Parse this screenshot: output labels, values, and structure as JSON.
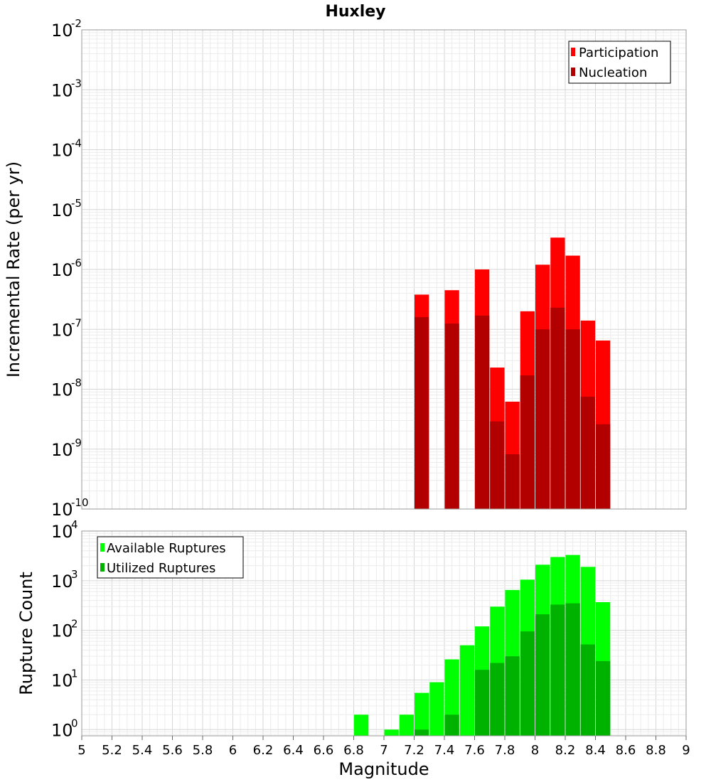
{
  "chart_data": {
    "title": "Huxley",
    "xlabel": "Magnitude",
    "x_ticks": [
      "5",
      "5.2",
      "5.4",
      "5.6",
      "5.8",
      "6",
      "6.2",
      "6.4",
      "6.6",
      "6.8",
      "7",
      "7.2",
      "7.4",
      "7.6",
      "7.8",
      "8",
      "8.2",
      "8.4",
      "8.6",
      "8.8",
      "9"
    ],
    "xlim": [
      5,
      9
    ],
    "bar_width": 0.1,
    "panels": [
      {
        "type": "bar",
        "scale": "log",
        "ylabel": "Incremental Rate (per yr)",
        "ylim": [
          1e-10,
          0.01
        ],
        "y_ticks": [
          {
            "base": "10",
            "exp": "-10"
          },
          {
            "base": "10",
            "exp": "-9"
          },
          {
            "base": "10",
            "exp": "-8"
          },
          {
            "base": "10",
            "exp": "-7"
          },
          {
            "base": "10",
            "exp": "-6"
          },
          {
            "base": "10",
            "exp": "-5"
          },
          {
            "base": "10",
            "exp": "-4"
          },
          {
            "base": "10",
            "exp": "-3"
          },
          {
            "base": "10",
            "exp": "-2"
          }
        ],
        "legend_position": "top-right",
        "series": [
          {
            "name": "Participation",
            "color": "#ff0000",
            "x": [
              7.25,
              7.45,
              7.65,
              7.75,
              7.85,
              7.95,
              8.05,
              8.15,
              8.25,
              8.35,
              8.45
            ],
            "values": [
              3.8e-07,
              4.5e-07,
              1e-06,
              2.3e-08,
              6.2e-09,
              2e-07,
              1.2e-06,
              3.4e-06,
              1.7e-06,
              1.4e-07,
              6.5e-08
            ]
          },
          {
            "name": "Nucleation",
            "color": "#b20000",
            "x": [
              7.25,
              7.45,
              7.65,
              7.75,
              7.85,
              7.95,
              8.05,
              8.15,
              8.25,
              8.35,
              8.45
            ],
            "values": [
              1.6e-07,
              1.25e-07,
              1.7e-07,
              2.9e-09,
              8.2e-10,
              1.7e-08,
              1e-07,
              2.3e-07,
              1e-07,
              7.5e-09,
              2.6e-09
            ]
          }
        ]
      },
      {
        "type": "bar",
        "scale": "log",
        "ylabel": "Rupture Count",
        "ylim": [
          0.75,
          10000
        ],
        "y_ticks": [
          {
            "base": "10",
            "exp": "0",
            "value": 1
          },
          {
            "base": "10",
            "exp": "1",
            "value": 10
          },
          {
            "base": "10",
            "exp": "2",
            "value": 100
          },
          {
            "base": "10",
            "exp": "3",
            "value": 1000
          },
          {
            "base": "10",
            "exp": "4",
            "value": 10000
          }
        ],
        "legend_position": "top-left",
        "series": [
          {
            "name": "Available Ruptures",
            "color": "#00ff00",
            "x": [
              6.85,
              7.05,
              7.15,
              7.25,
              7.35,
              7.45,
              7.55,
              7.65,
              7.75,
              7.85,
              7.95,
              8.05,
              8.15,
              8.25,
              8.35,
              8.45
            ],
            "values": [
              2,
              1,
              2,
              5.5,
              9,
              26,
              50,
              120,
              300,
              650,
              1050,
              2100,
              3000,
              3300,
              1900,
              370
            ]
          },
          {
            "name": "Utilized Ruptures",
            "color": "#00b200",
            "x": [
              7.25,
              7.45,
              7.65,
              7.75,
              7.85,
              7.95,
              8.05,
              8.15,
              8.25,
              8.35,
              8.45
            ],
            "values": [
              1,
              2,
              16,
              22,
              30,
              95,
              210,
              330,
              350,
              52,
              24
            ]
          }
        ]
      }
    ]
  }
}
